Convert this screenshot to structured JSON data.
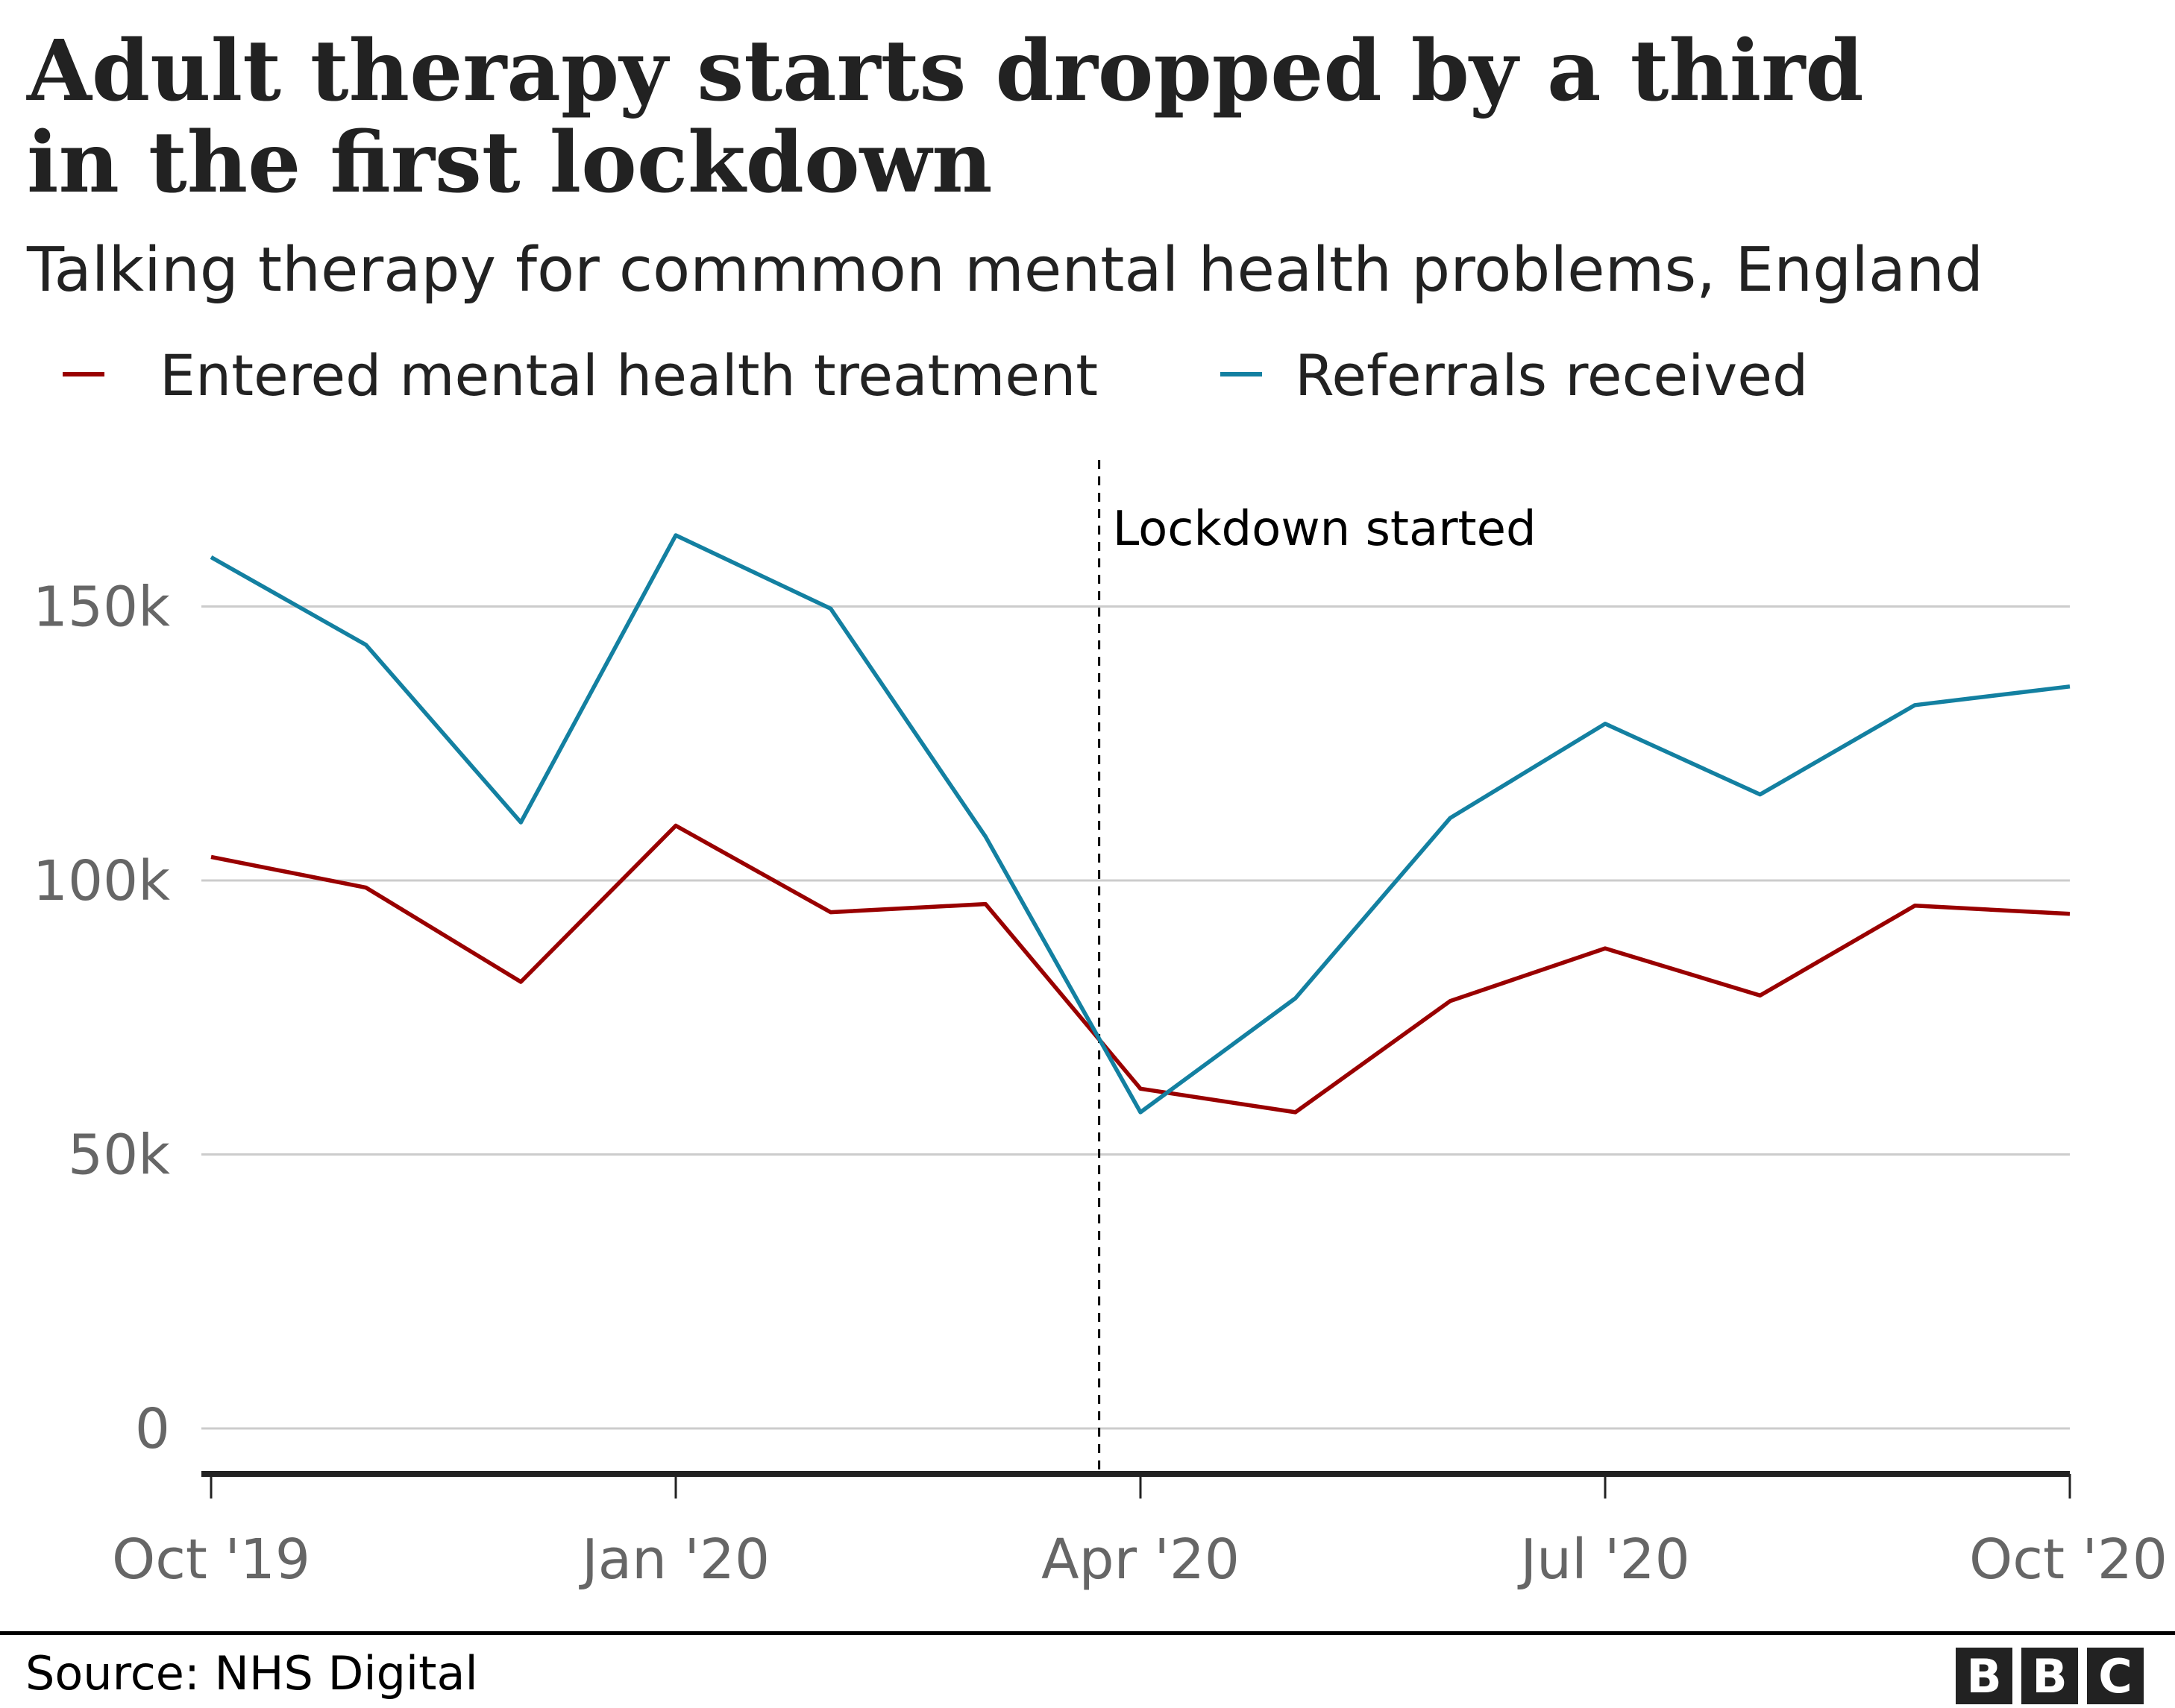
{
  "chart_data": {
    "type": "line",
    "title": "Adult therapy starts dropped by a third in the first lockdown",
    "title_lines": [
      "Adult therapy starts dropped by a third",
      "in the first lockdown"
    ],
    "subtitle": "Talking therapy for commmon mental health problems, England",
    "x": [
      "2019-10",
      "2019-11",
      "2019-12",
      "2020-01",
      "2020-02",
      "2020-03",
      "2020-04",
      "2020-05",
      "2020-06",
      "2020-07",
      "2020-08",
      "2020-09",
      "2020-10"
    ],
    "x_tick_labels": [
      "Oct '19",
      "Jan '20",
      "Apr '20",
      "Jul '20",
      "Oct '20"
    ],
    "x_tick_positions": [
      "2019-10",
      "2020-01",
      "2020-04",
      "2020-07",
      "2020-10"
    ],
    "y_tick_values": [
      0,
      50000,
      100000,
      150000
    ],
    "y_tick_labels": [
      "0",
      "50k",
      "100k",
      "150k"
    ],
    "ylim": [
      0,
      175000
    ],
    "grid": true,
    "legend_placement": "top",
    "series": [
      {
        "name": "Entered mental health treatment",
        "color": "#990000",
        "values": [
          104300,
          98700,
          81500,
          110000,
          94200,
          95700,
          62000,
          57700,
          78000,
          87600,
          79000,
          95400,
          93900
        ]
      },
      {
        "name": "Referrals received",
        "color": "#1380A1",
        "values": [
          159000,
          143000,
          110600,
          163000,
          149600,
          108000,
          57700,
          78500,
          111400,
          128600,
          115700,
          132000,
          135400
        ]
      }
    ],
    "annotations": [
      {
        "text": "Lockdown started",
        "x": "2020-03-23",
        "style": "dashed-vertical-line"
      }
    ]
  },
  "footer": {
    "source": "Source: NHS Digital",
    "logo": "BBC"
  }
}
